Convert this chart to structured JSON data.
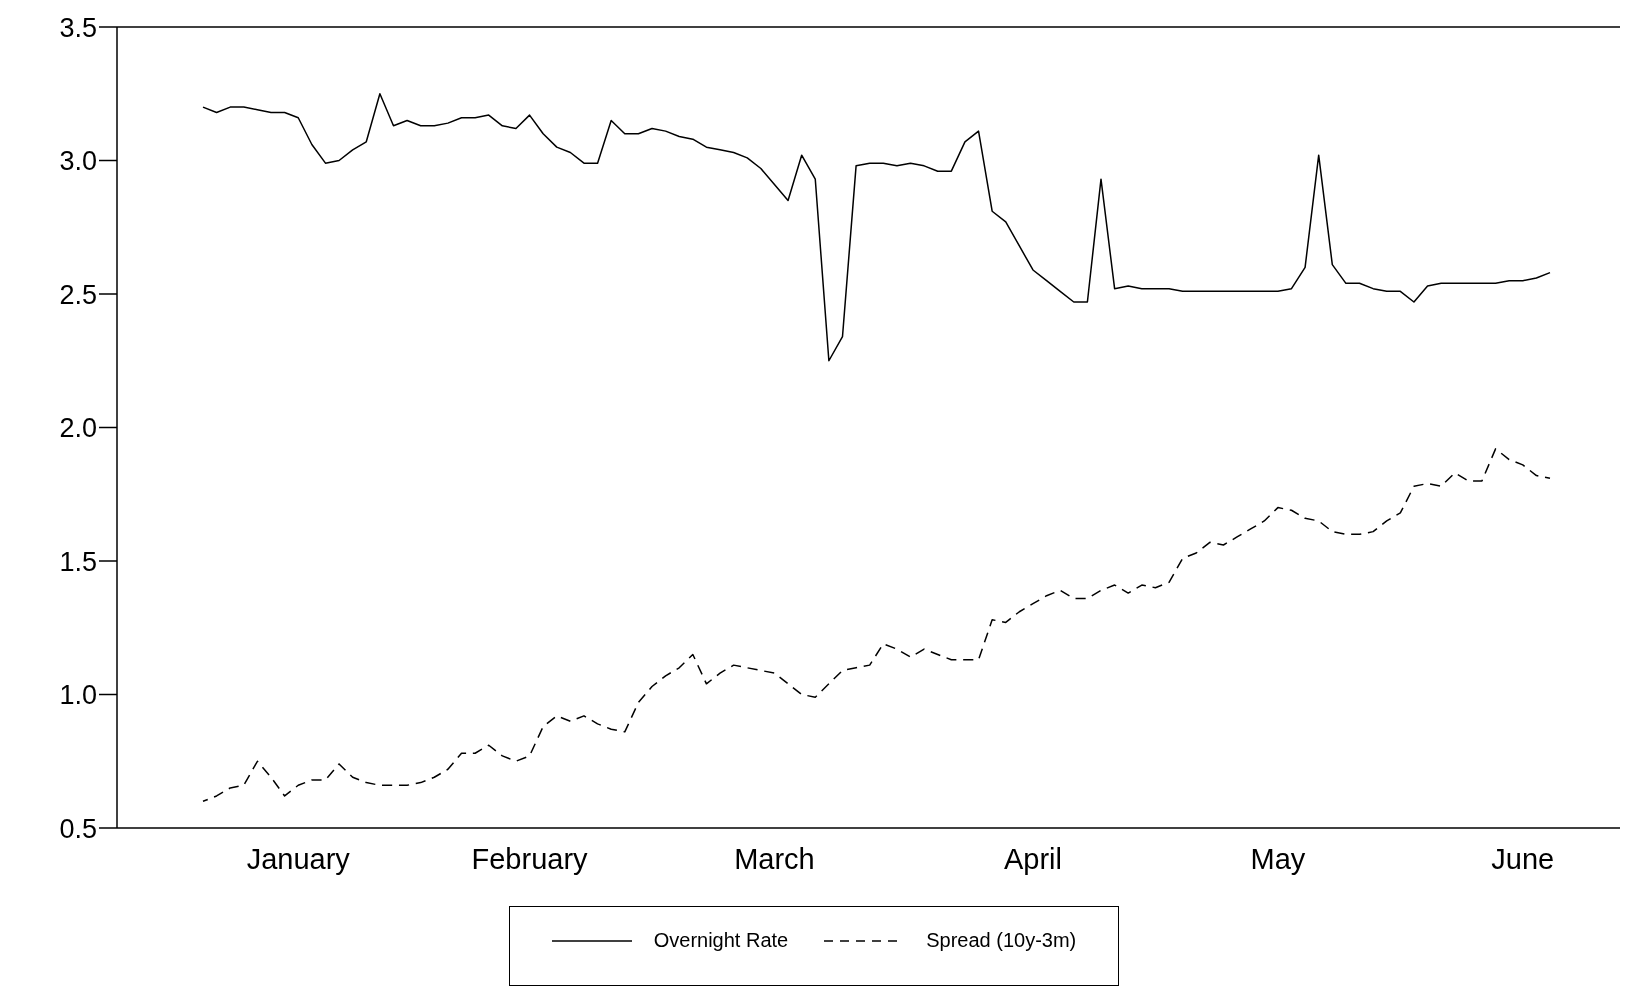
{
  "chart_data": {
    "type": "line",
    "categories": [
      null,
      null,
      null,
      null,
      null,
      null,
      null,
      "January",
      null,
      null,
      null,
      null,
      null,
      null,
      null,
      null,
      null,
      null,
      null,
      null,
      null,
      null,
      null,
      null,
      "February",
      null,
      null,
      null,
      null,
      null,
      null,
      null,
      null,
      null,
      null,
      null,
      null,
      null,
      null,
      null,
      null,
      null,
      "March",
      null,
      null,
      null,
      null,
      null,
      null,
      null,
      null,
      null,
      null,
      null,
      null,
      null,
      null,
      null,
      null,
      null,
      null,
      "April",
      null,
      null,
      null,
      null,
      null,
      null,
      null,
      null,
      null,
      null,
      null,
      null,
      null,
      null,
      null,
      null,
      null,
      "May",
      null,
      null,
      null,
      null,
      null,
      null,
      null,
      null,
      null,
      null,
      null,
      null,
      null,
      null,
      null,
      null,
      null,
      "June",
      null,
      null
    ],
    "series": [
      {
        "name": "Overnight Rate",
        "color": "#000000",
        "line_style": "solid",
        "values": [
          3.2,
          3.18,
          3.2,
          3.2,
          3.19,
          3.18,
          3.18,
          3.16,
          3.06,
          2.99,
          3.0,
          3.04,
          3.07,
          3.25,
          3.13,
          3.15,
          3.13,
          3.13,
          3.14,
          3.16,
          3.16,
          3.17,
          3.13,
          3.12,
          3.17,
          3.1,
          3.05,
          3.03,
          2.99,
          2.99,
          3.15,
          3.1,
          3.1,
          3.12,
          3.11,
          3.09,
          3.08,
          3.05,
          3.04,
          3.03,
          3.01,
          2.97,
          2.91,
          2.85,
          3.02,
          2.93,
          2.25,
          2.34,
          2.98,
          2.99,
          2.99,
          2.98,
          2.99,
          2.98,
          2.96,
          2.96,
          3.07,
          3.11,
          2.81,
          2.77,
          2.68,
          2.59,
          2.55,
          2.51,
          2.47,
          2.47,
          2.93,
          2.52,
          2.53,
          2.52,
          2.52,
          2.52,
          2.51,
          2.51,
          2.51,
          2.51,
          2.51,
          2.51,
          2.51,
          2.51,
          2.52,
          2.6,
          3.02,
          2.61,
          2.54,
          2.54,
          2.52,
          2.51,
          2.51,
          2.47,
          2.53,
          2.54,
          2.54,
          2.54,
          2.54,
          2.54,
          2.55,
          2.55,
          2.56,
          2.58
        ]
      },
      {
        "name": "Spread (10y-3m)",
        "color": "#000000",
        "line_style": "dashed",
        "values": [
          0.6,
          0.62,
          0.65,
          0.66,
          0.75,
          0.69,
          0.62,
          0.66,
          0.68,
          0.68,
          0.74,
          0.69,
          0.67,
          0.66,
          0.66,
          0.66,
          0.67,
          0.69,
          0.72,
          0.78,
          0.78,
          0.81,
          0.77,
          0.75,
          0.77,
          0.88,
          0.92,
          0.9,
          0.92,
          0.89,
          0.87,
          0.86,
          0.97,
          1.03,
          1.07,
          1.1,
          1.15,
          1.04,
          1.08,
          1.11,
          1.1,
          1.09,
          1.08,
          1.04,
          1.0,
          0.99,
          1.04,
          1.09,
          1.1,
          1.11,
          1.19,
          1.17,
          1.14,
          1.17,
          1.15,
          1.13,
          1.13,
          1.13,
          1.28,
          1.27,
          1.31,
          1.34,
          1.37,
          1.39,
          1.36,
          1.36,
          1.39,
          1.41,
          1.38,
          1.41,
          1.4,
          1.42,
          1.51,
          1.53,
          1.57,
          1.56,
          1.59,
          1.62,
          1.65,
          1.7,
          1.69,
          1.66,
          1.65,
          1.61,
          1.6,
          1.6,
          1.61,
          1.65,
          1.68,
          1.78,
          1.79,
          1.78,
          1.83,
          1.8,
          1.8,
          1.92,
          1.88,
          1.86,
          1.82,
          1.81
        ]
      }
    ],
    "ylim": [
      0.5,
      3.5
    ],
    "yticks": [
      {
        "value": 0.5,
        "label": "0.5"
      },
      {
        "value": 1,
        "label": "1.0"
      },
      {
        "value": 1.5,
        "label": "1.5"
      },
      {
        "value": 2,
        "label": "2.0"
      },
      {
        "value": 2.5,
        "label": "2.5"
      },
      {
        "value": 3,
        "label": "3.0"
      },
      {
        "value": 3.5,
        "label": "3.5"
      }
    ],
    "grid": false,
    "legend": "bottom",
    "marker": "none"
  }
}
